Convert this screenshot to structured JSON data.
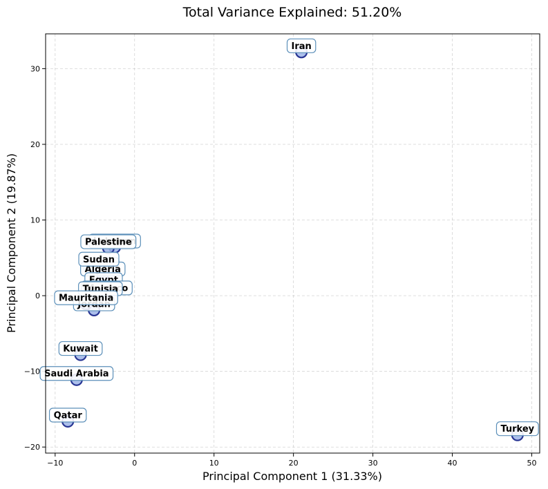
{
  "chart_data": {
    "type": "scatter",
    "title": "Total Variance Explained: 51.20%",
    "xlabel": "Principal Component 1 (31.33%)",
    "ylabel": "Principal Component 2 (19.87%)",
    "xlim": [
      -11.2,
      51.0
    ],
    "ylim": [
      -20.8,
      34.6
    ],
    "xticks": [
      -10,
      0,
      10,
      20,
      30,
      40,
      50
    ],
    "yticks": [
      -20,
      -10,
      0,
      10,
      20,
      30
    ],
    "grid": true,
    "points": [
      {
        "label": "Iran",
        "x": 21.0,
        "y": 32.2
      },
      {
        "label": "Turkey",
        "x": 48.2,
        "y": -18.4
      },
      {
        "label": "Lebanon",
        "x": -2.5,
        "y": 6.4
      },
      {
        "label": "Palestine",
        "x": -3.3,
        "y": 6.3
      },
      {
        "label": "Libya",
        "x": -4.2,
        "y": 3.3
      },
      {
        "label": "Algeria",
        "x": -4.0,
        "y": 2.7
      },
      {
        "label": "Sudan",
        "x": -4.5,
        "y": 4.0
      },
      {
        "label": "Egypt",
        "x": -3.9,
        "y": 1.3
      },
      {
        "label": "Morocco",
        "x": -3.5,
        "y": 0.2
      },
      {
        "label": "Tunisia",
        "x": -4.3,
        "y": 0.1
      },
      {
        "label": "Jordan",
        "x": -5.1,
        "y": -1.9
      },
      {
        "label": "Mauritania",
        "x": -6.1,
        "y": -1.1
      },
      {
        "label": "Kuwait",
        "x": -6.8,
        "y": -7.8
      },
      {
        "label": "Saudi Arabia",
        "x": -7.3,
        "y": -11.1
      },
      {
        "label": "Qatar",
        "x": -8.4,
        "y": -16.6
      }
    ]
  }
}
